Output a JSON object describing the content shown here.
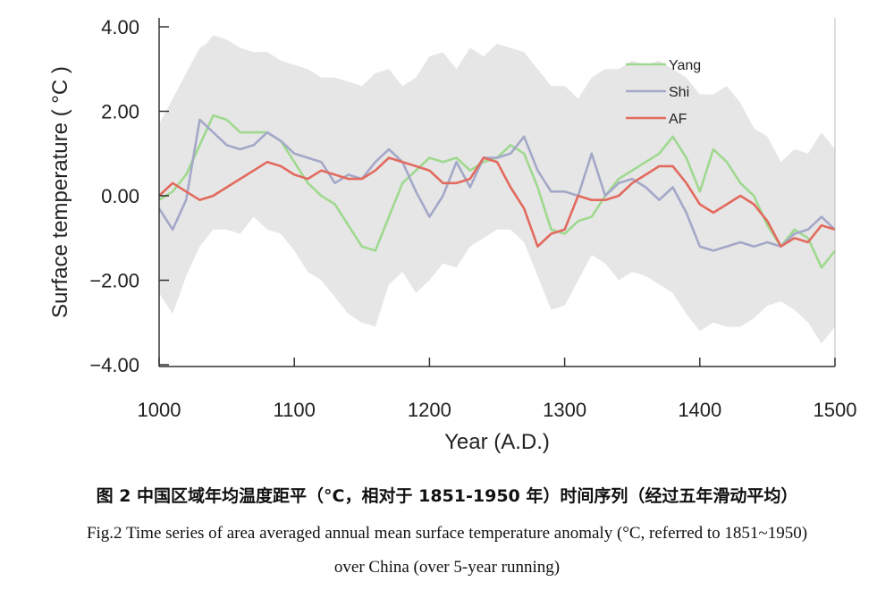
{
  "chart_data": {
    "type": "line",
    "xlabel": "Year (A.D.)",
    "ylabel": "Surface temperature ( °C )",
    "xlim": [
      1000,
      1500
    ],
    "ylim": [
      -4,
      4
    ],
    "xticks": [
      "1000",
      "1100",
      "1200",
      "1300",
      "1400",
      "1500"
    ],
    "yticks": [
      "4.00",
      "2.00",
      "0.00",
      "−2.00",
      "−4.00"
    ],
    "legend_position": "top-right",
    "uncertainty_band": {
      "color": "#e6e6e6",
      "upper": [
        [
          1000,
          1.7
        ],
        [
          1005,
          2.0
        ],
        [
          1010,
          2.3
        ],
        [
          1015,
          2.6
        ],
        [
          1020,
          2.9
        ],
        [
          1025,
          3.2
        ],
        [
          1030,
          3.5
        ],
        [
          1035,
          3.6
        ],
        [
          1040,
          3.8
        ],
        [
          1050,
          3.7
        ],
        [
          1060,
          3.5
        ],
        [
          1070,
          3.4
        ],
        [
          1080,
          3.4
        ],
        [
          1090,
          3.2
        ],
        [
          1100,
          3.1
        ],
        [
          1110,
          3.0
        ],
        [
          1120,
          2.8
        ],
        [
          1130,
          2.8
        ],
        [
          1140,
          2.7
        ],
        [
          1150,
          2.6
        ],
        [
          1160,
          2.9
        ],
        [
          1170,
          3.0
        ],
        [
          1180,
          2.6
        ],
        [
          1190,
          2.8
        ],
        [
          1200,
          3.3
        ],
        [
          1210,
          3.4
        ],
        [
          1220,
          3.0
        ],
        [
          1230,
          3.5
        ],
        [
          1240,
          3.3
        ],
        [
          1250,
          3.6
        ],
        [
          1260,
          3.5
        ],
        [
          1270,
          3.4
        ],
        [
          1280,
          3.0
        ],
        [
          1290,
          2.6
        ],
        [
          1300,
          2.6
        ],
        [
          1310,
          2.3
        ],
        [
          1320,
          2.8
        ],
        [
          1330,
          3.0
        ],
        [
          1340,
          3.0
        ],
        [
          1350,
          3.2
        ],
        [
          1360,
          3.1
        ],
        [
          1370,
          3.2
        ],
        [
          1380,
          3.0
        ],
        [
          1390,
          2.8
        ],
        [
          1400,
          2.4
        ],
        [
          1410,
          2.4
        ],
        [
          1420,
          2.6
        ],
        [
          1430,
          2.2
        ],
        [
          1440,
          1.6
        ],
        [
          1450,
          1.4
        ],
        [
          1460,
          0.8
        ],
        [
          1470,
          1.1
        ],
        [
          1480,
          1.0
        ],
        [
          1490,
          1.5
        ],
        [
          1500,
          1.1
        ]
      ],
      "lower": [
        [
          1000,
          -2.3
        ],
        [
          1010,
          -2.8
        ],
        [
          1020,
          -1.9
        ],
        [
          1030,
          -1.2
        ],
        [
          1040,
          -0.8
        ],
        [
          1050,
          -0.8
        ],
        [
          1060,
          -0.9
        ],
        [
          1070,
          -0.5
        ],
        [
          1080,
          -0.8
        ],
        [
          1090,
          -0.9
        ],
        [
          1100,
          -1.3
        ],
        [
          1110,
          -1.8
        ],
        [
          1120,
          -2.0
        ],
        [
          1130,
          -2.4
        ],
        [
          1140,
          -2.8
        ],
        [
          1150,
          -3.0
        ],
        [
          1160,
          -3.1
        ],
        [
          1170,
          -2.1
        ],
        [
          1180,
          -1.8
        ],
        [
          1190,
          -2.3
        ],
        [
          1200,
          -2.0
        ],
        [
          1210,
          -1.6
        ],
        [
          1220,
          -1.7
        ],
        [
          1230,
          -1.2
        ],
        [
          1240,
          -1.0
        ],
        [
          1250,
          -0.8
        ],
        [
          1260,
          -0.8
        ],
        [
          1270,
          -1.1
        ],
        [
          1280,
          -1.9
        ],
        [
          1290,
          -2.7
        ],
        [
          1300,
          -2.6
        ],
        [
          1310,
          -2.0
        ],
        [
          1320,
          -1.4
        ],
        [
          1330,
          -1.6
        ],
        [
          1340,
          -2.0
        ],
        [
          1350,
          -1.8
        ],
        [
          1360,
          -1.9
        ],
        [
          1370,
          -2.1
        ],
        [
          1380,
          -2.3
        ],
        [
          1390,
          -2.8
        ],
        [
          1400,
          -3.2
        ],
        [
          1410,
          -3.0
        ],
        [
          1420,
          -3.1
        ],
        [
          1430,
          -3.1
        ],
        [
          1440,
          -2.9
        ],
        [
          1450,
          -2.6
        ],
        [
          1460,
          -2.5
        ],
        [
          1470,
          -2.7
        ],
        [
          1480,
          -3.0
        ],
        [
          1490,
          -3.5
        ],
        [
          1500,
          -3.1
        ]
      ]
    },
    "series": [
      {
        "name": "Yang",
        "color": "#9fd98f",
        "values": [
          [
            1000,
            -0.1
          ],
          [
            1010,
            0.1
          ],
          [
            1020,
            0.5
          ],
          [
            1030,
            1.2
          ],
          [
            1040,
            1.9
          ],
          [
            1050,
            1.8
          ],
          [
            1060,
            1.5
          ],
          [
            1070,
            1.5
          ],
          [
            1080,
            1.5
          ],
          [
            1090,
            1.3
          ],
          [
            1100,
            0.8
          ],
          [
            1110,
            0.3
          ],
          [
            1120,
            0.0
          ],
          [
            1130,
            -0.2
          ],
          [
            1140,
            -0.7
          ],
          [
            1150,
            -1.2
          ],
          [
            1160,
            -1.3
          ],
          [
            1170,
            -0.5
          ],
          [
            1180,
            0.3
          ],
          [
            1190,
            0.6
          ],
          [
            1200,
            0.9
          ],
          [
            1210,
            0.8
          ],
          [
            1220,
            0.9
          ],
          [
            1230,
            0.6
          ],
          [
            1240,
            0.8
          ],
          [
            1250,
            0.9
          ],
          [
            1260,
            1.2
          ],
          [
            1270,
            1.0
          ],
          [
            1280,
            0.2
          ],
          [
            1290,
            -0.8
          ],
          [
            1300,
            -0.9
          ],
          [
            1310,
            -0.6
          ],
          [
            1320,
            -0.5
          ],
          [
            1330,
            0.0
          ],
          [
            1340,
            0.4
          ],
          [
            1350,
            0.6
          ],
          [
            1360,
            0.8
          ],
          [
            1370,
            1.0
          ],
          [
            1380,
            1.4
          ],
          [
            1390,
            0.9
          ],
          [
            1400,
            0.1
          ],
          [
            1410,
            1.1
          ],
          [
            1420,
            0.8
          ],
          [
            1430,
            0.3
          ],
          [
            1440,
            0.0
          ],
          [
            1450,
            -0.7
          ],
          [
            1460,
            -1.2
          ],
          [
            1470,
            -0.8
          ],
          [
            1480,
            -1.0
          ],
          [
            1490,
            -1.7
          ],
          [
            1500,
            -1.3
          ]
        ]
      },
      {
        "name": "Shi",
        "color": "#a4a8c8",
        "values": [
          [
            1000,
            -0.3
          ],
          [
            1010,
            -0.8
          ],
          [
            1020,
            -0.1
          ],
          [
            1030,
            1.8
          ],
          [
            1040,
            1.5
          ],
          [
            1050,
            1.2
          ],
          [
            1060,
            1.1
          ],
          [
            1070,
            1.2
          ],
          [
            1080,
            1.5
          ],
          [
            1090,
            1.3
          ],
          [
            1100,
            1.0
          ],
          [
            1110,
            0.9
          ],
          [
            1120,
            0.8
          ],
          [
            1130,
            0.3
          ],
          [
            1140,
            0.5
          ],
          [
            1150,
            0.4
          ],
          [
            1160,
            0.8
          ],
          [
            1170,
            1.1
          ],
          [
            1180,
            0.8
          ],
          [
            1190,
            0.1
          ],
          [
            1200,
            -0.5
          ],
          [
            1210,
            0.0
          ],
          [
            1220,
            0.8
          ],
          [
            1230,
            0.2
          ],
          [
            1240,
            0.9
          ],
          [
            1250,
            0.9
          ],
          [
            1260,
            1.0
          ],
          [
            1270,
            1.4
          ],
          [
            1280,
            0.6
          ],
          [
            1290,
            0.1
          ],
          [
            1300,
            0.1
          ],
          [
            1310,
            0.0
          ],
          [
            1320,
            1.0
          ],
          [
            1330,
            0.0
          ],
          [
            1340,
            0.3
          ],
          [
            1350,
            0.4
          ],
          [
            1360,
            0.2
          ],
          [
            1370,
            -0.1
          ],
          [
            1380,
            0.2
          ],
          [
            1390,
            -0.4
          ],
          [
            1400,
            -1.2
          ],
          [
            1410,
            -1.3
          ],
          [
            1420,
            -1.2
          ],
          [
            1430,
            -1.1
          ],
          [
            1440,
            -1.2
          ],
          [
            1450,
            -1.1
          ],
          [
            1460,
            -1.2
          ],
          [
            1470,
            -0.9
          ],
          [
            1480,
            -0.8
          ],
          [
            1490,
            -0.5
          ],
          [
            1500,
            -0.8
          ]
        ]
      },
      {
        "name": "AF",
        "color": "#e26a5e",
        "values": [
          [
            1000,
            0.0
          ],
          [
            1010,
            0.3
          ],
          [
            1020,
            0.1
          ],
          [
            1030,
            -0.1
          ],
          [
            1040,
            0.0
          ],
          [
            1050,
            0.2
          ],
          [
            1060,
            0.4
          ],
          [
            1070,
            0.6
          ],
          [
            1080,
            0.8
          ],
          [
            1090,
            0.7
          ],
          [
            1100,
            0.5
          ],
          [
            1110,
            0.4
          ],
          [
            1120,
            0.6
          ],
          [
            1130,
            0.5
          ],
          [
            1140,
            0.4
          ],
          [
            1150,
            0.4
          ],
          [
            1160,
            0.6
          ],
          [
            1170,
            0.9
          ],
          [
            1180,
            0.8
          ],
          [
            1190,
            0.7
          ],
          [
            1200,
            0.6
          ],
          [
            1210,
            0.3
          ],
          [
            1220,
            0.3
          ],
          [
            1230,
            0.4
          ],
          [
            1240,
            0.9
          ],
          [
            1250,
            0.8
          ],
          [
            1260,
            0.2
          ],
          [
            1270,
            -0.3
          ],
          [
            1280,
            -1.2
          ],
          [
            1290,
            -0.9
          ],
          [
            1300,
            -0.8
          ],
          [
            1310,
            0.0
          ],
          [
            1320,
            -0.1
          ],
          [
            1330,
            -0.1
          ],
          [
            1340,
            0.0
          ],
          [
            1350,
            0.3
          ],
          [
            1360,
            0.5
          ],
          [
            1370,
            0.7
          ],
          [
            1380,
            0.7
          ],
          [
            1390,
            0.3
          ],
          [
            1400,
            -0.2
          ],
          [
            1410,
            -0.4
          ],
          [
            1420,
            -0.2
          ],
          [
            1430,
            0.0
          ],
          [
            1440,
            -0.2
          ],
          [
            1450,
            -0.6
          ],
          [
            1460,
            -1.2
          ],
          [
            1470,
            -1.0
          ],
          [
            1480,
            -1.1
          ],
          [
            1490,
            -0.7
          ],
          [
            1500,
            -0.8
          ]
        ]
      }
    ]
  },
  "captions": {
    "cn": "图 2  中国区域年均温度距平（°C，相对于 1851-1950 年）时间序列（经过五年滑动平均）",
    "en_line1": "Fig.2 Time series of area averaged annual mean surface temperature anomaly (°C, referred to 1851~1950)",
    "en_line2": "over China (over 5-year running)"
  }
}
